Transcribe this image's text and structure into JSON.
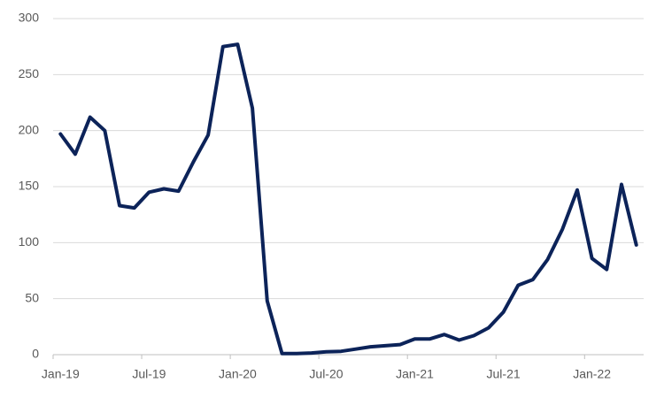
{
  "chart_data": {
    "type": "line",
    "categories": [
      "Jan-19",
      null,
      null,
      null,
      null,
      null,
      "Jul-19",
      null,
      null,
      null,
      null,
      null,
      "Jan-20",
      null,
      null,
      null,
      null,
      null,
      "Jul-20",
      null,
      null,
      null,
      null,
      null,
      "Jan-21",
      null,
      null,
      null,
      null,
      null,
      "Jul-21",
      null,
      null,
      null,
      null,
      null,
      "Jan-22",
      null,
      null,
      null
    ],
    "values": [
      197,
      179,
      212,
      200,
      133,
      131,
      145,
      148,
      146,
      172,
      196,
      275,
      277,
      220,
      48,
      1,
      1,
      1.5,
      2.5,
      3,
      5,
      7,
      8,
      9,
      14,
      14,
      18,
      13,
      17,
      24,
      38,
      62,
      67,
      85,
      112,
      147,
      86,
      76,
      152,
      98
    ],
    "color": "#0c2359",
    "ylim": [
      0,
      300
    ],
    "yticks": [
      0,
      50,
      100,
      150,
      200,
      250,
      300
    ],
    "grid": true
  }
}
